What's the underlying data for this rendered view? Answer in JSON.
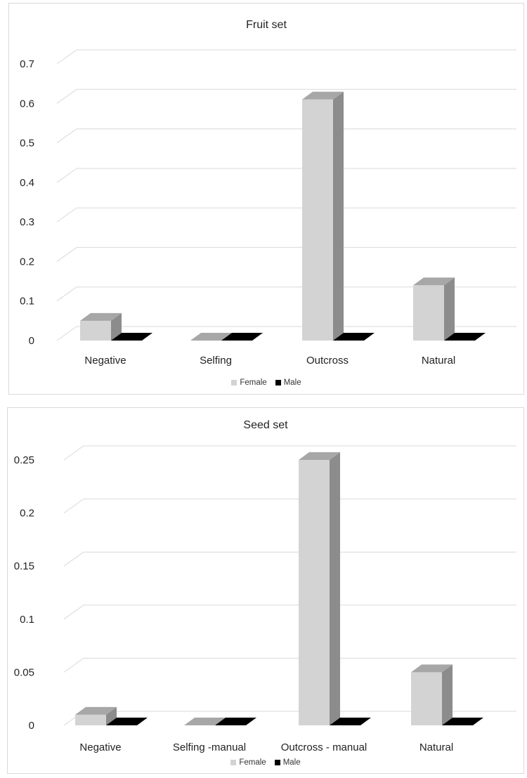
{
  "colors": {
    "female_front": "#d3d3d3",
    "female_top": "#a7a7a7",
    "female_side": "#8c8c8c",
    "male": "#000000",
    "grid": "#d9d9d9"
  },
  "chart_data": [
    {
      "type": "bar",
      "title": "Fruit set",
      "categories": [
        "Negative",
        "Selfing",
        "Outcross",
        "Natural"
      ],
      "series": [
        {
          "name": "Female",
          "values": [
            0.05,
            0.0,
            0.61,
            0.14
          ]
        },
        {
          "name": "Male",
          "values": [
            0,
            0,
            0,
            0
          ]
        }
      ],
      "yticks": [
        "0",
        "0.1",
        "0.2",
        "0.3",
        "0.4",
        "0.5",
        "0.6",
        "0.7"
      ],
      "ylim": [
        0,
        0.7
      ],
      "grid": true,
      "legend": "bottom",
      "xlabel": "",
      "ylabel": ""
    },
    {
      "type": "bar",
      "title": "Seed set",
      "categories": [
        "Negative",
        "Selfing -manual",
        "Outcross - manual",
        "Natural"
      ],
      "series": [
        {
          "name": "Female",
          "values": [
            0.01,
            0.0,
            0.25,
            0.05
          ]
        },
        {
          "name": "Male",
          "values": [
            0,
            0,
            0,
            0
          ]
        }
      ],
      "yticks": [
        "0",
        "0.05",
        "0.1",
        "0.15",
        "0.2",
        "0.25"
      ],
      "ylim": [
        0,
        0.25
      ],
      "grid": true,
      "legend": "bottom",
      "xlabel": "",
      "ylabel": ""
    }
  ]
}
